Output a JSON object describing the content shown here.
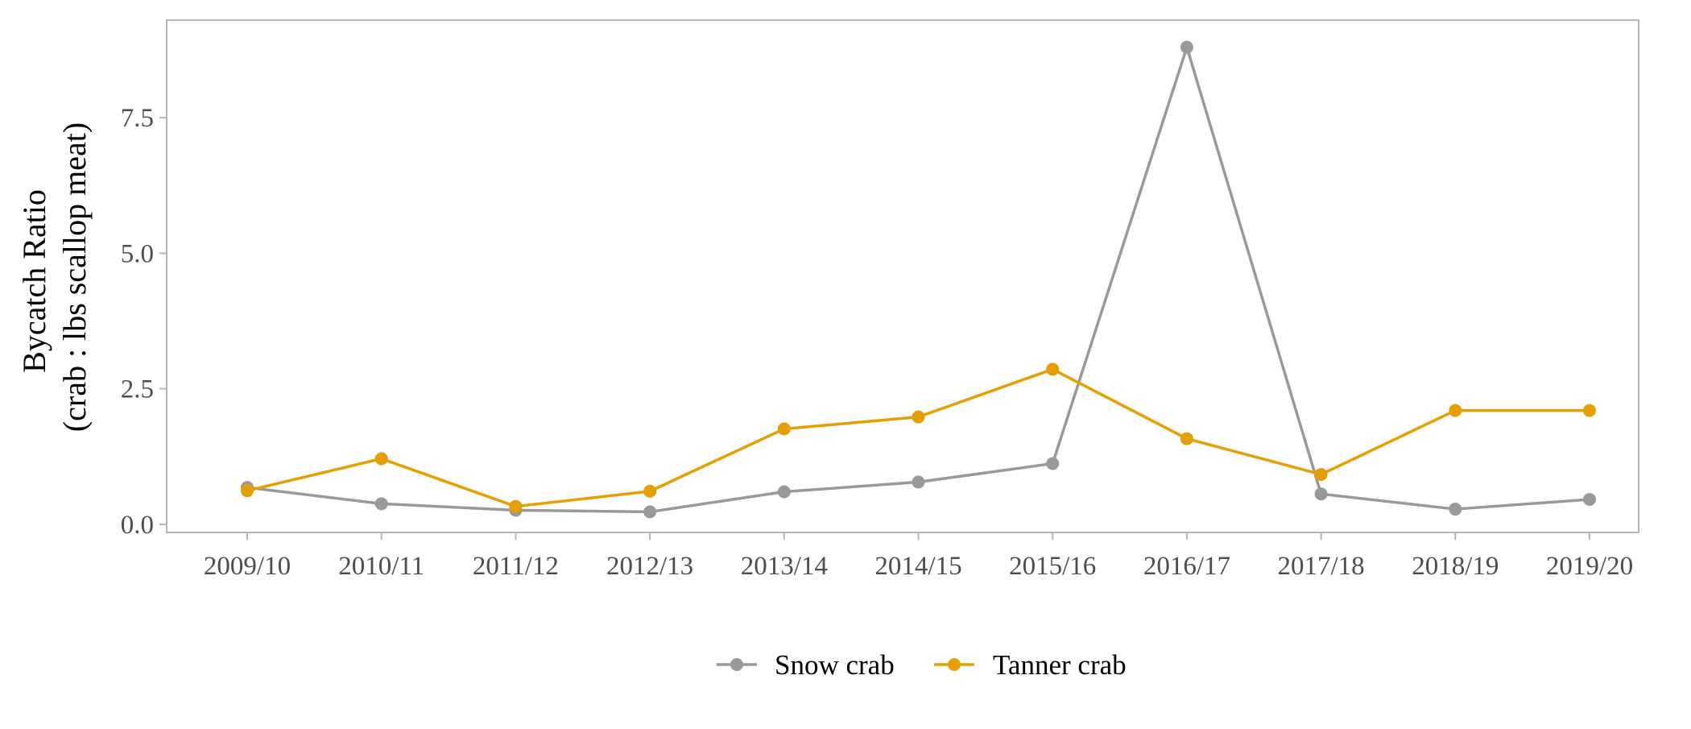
{
  "chart_data": {
    "type": "line",
    "title": "",
    "xlabel": "",
    "ylabel": [
      "Bycatch Ratio",
      "(crab : lbs scallop meat)"
    ],
    "categories": [
      "2009/10",
      "2010/11",
      "2011/12",
      "2012/13",
      "2013/14",
      "2014/15",
      "2015/16",
      "2016/17",
      "2017/18",
      "2018/19",
      "2019/20"
    ],
    "ylim": [
      -0.15,
      9.3
    ],
    "yticks": [
      0.0,
      2.5,
      5.0,
      7.5
    ],
    "ytick_labels": [
      "0.0",
      "2.5",
      "5.0",
      "7.5"
    ],
    "grid": false,
    "legend_position": "bottom",
    "series": [
      {
        "name": "Snow crab",
        "color": "#999999",
        "values": [
          0.68,
          0.38,
          0.26,
          0.23,
          0.6,
          0.78,
          1.12,
          8.8,
          0.56,
          0.28,
          0.46
        ]
      },
      {
        "name": "Tanner crab",
        "color": "#E69F00",
        "values": [
          0.62,
          1.21,
          0.33,
          0.61,
          1.76,
          1.98,
          2.86,
          1.58,
          0.92,
          2.1,
          2.1
        ]
      }
    ]
  }
}
